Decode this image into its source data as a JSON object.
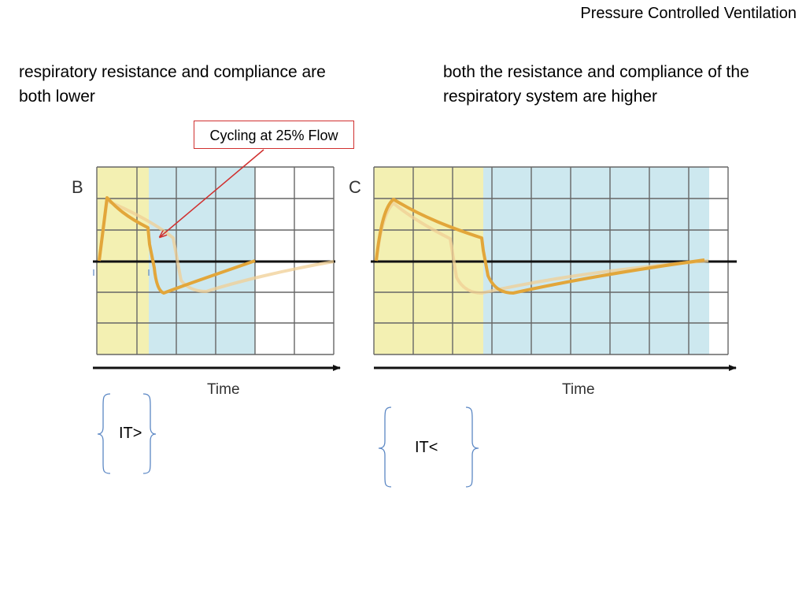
{
  "slide": {
    "title": "Pressure Controlled Ventilation"
  },
  "captions": {
    "left": "respiratory resistance and compliance are both lower",
    "right": "both the resistance and compliance of the respiratory system are higher"
  },
  "callout": {
    "text": "Cycling at 25% Flow"
  },
  "panels": [
    {
      "letter": "B",
      "axis_label": "Time",
      "it_label": "IT>"
    },
    {
      "letter": "C",
      "axis_label": "Time",
      "it_label": "IT<"
    }
  ],
  "colors": {
    "inspiration_shade": "#f3f0b2",
    "expiration_shade": "#cde8ef",
    "grid": "#555555",
    "flow_curve": "#e2a63a",
    "flow_curve_faded": "#f0cf94",
    "callout_border": "#d0302f",
    "brace": "#5b87c4"
  }
}
